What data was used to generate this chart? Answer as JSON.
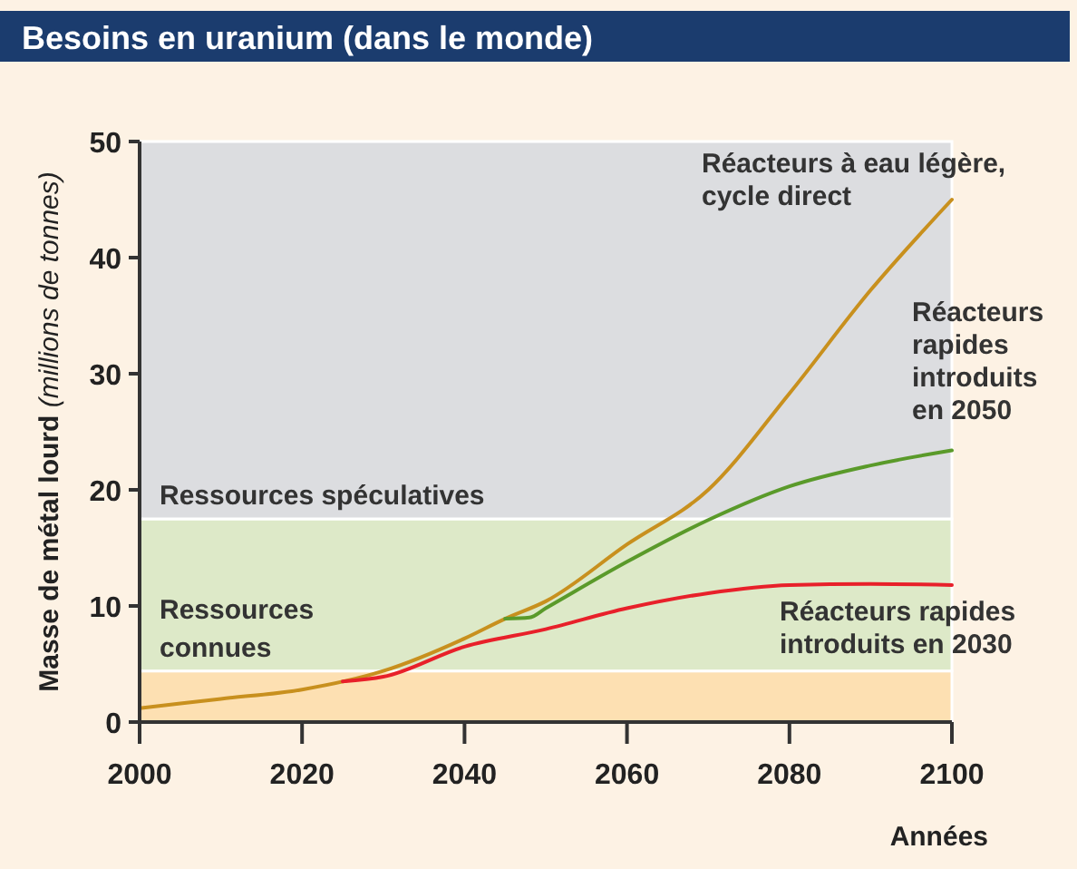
{
  "chart_data": {
    "type": "line",
    "title": "Besoins en uranium (dans le monde)",
    "xlabel": "Années",
    "ylabel": "Masse de métal lourd (millions de tonnes)",
    "xlim": [
      2000,
      2100
    ],
    "xticks": [
      2000,
      2020,
      2040,
      2060,
      2080,
      2100
    ],
    "ylim": [
      0,
      50
    ],
    "yticks": [
      0,
      10,
      20,
      30,
      40,
      50
    ],
    "grid": false,
    "marker": "none",
    "line_style": "solid",
    "bands": [
      {
        "axis": "y",
        "from": 0,
        "to": 4.4,
        "color": "#fde0b2"
      },
      {
        "axis": "y",
        "from": 4.4,
        "to": 17.5,
        "label": "Ressources connues",
        "color": "#dde9c8"
      },
      {
        "axis": "y",
        "from": 17.5,
        "to": 50,
        "label": "Ressources spéculatives",
        "color": "#dcdde0"
      }
    ],
    "series": [
      {
        "name": "Réacteurs à eau légère, cycle direct",
        "color": "#c8901e",
        "x": [
          2000,
          2010,
          2020,
          2030,
          2040,
          2045,
          2050,
          2060,
          2070,
          2080,
          2090,
          2100
        ],
        "values": [
          1.2,
          2.0,
          2.8,
          4.4,
          7.2,
          8.9,
          10.4,
          15.3,
          20,
          28.3,
          37.2,
          45
        ]
      },
      {
        "name": "Réacteurs rapides introduits en 2050",
        "color": "#5a9a2a",
        "x": [
          2045,
          2048,
          2050,
          2060,
          2070,
          2080,
          2090,
          2100
        ],
        "values": [
          8.9,
          9.0,
          9.8,
          13.8,
          17.4,
          20.3,
          22.1,
          23.4
        ]
      },
      {
        "name": "Réacteurs rapides introduits en 2030",
        "color": "#e8202a",
        "x": [
          2025,
          2030,
          2040,
          2050,
          2060,
          2070,
          2080,
          2090,
          2100
        ],
        "values": [
          3.5,
          3.9,
          6.5,
          8.0,
          9.8,
          11.1,
          11.8,
          11.9,
          11.8
        ]
      }
    ]
  }
}
